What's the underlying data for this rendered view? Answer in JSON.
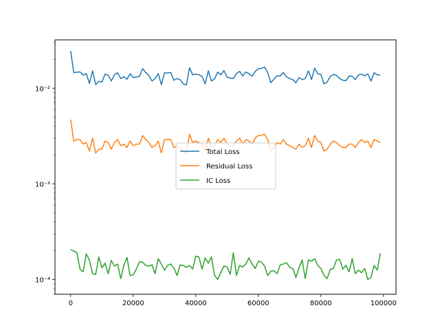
{
  "chart_data": {
    "type": "line",
    "title": "",
    "xlabel": "",
    "ylabel": "",
    "xlim": [
      -5000,
      104000
    ],
    "ylim": [
      7e-05,
      0.032
    ],
    "yscale": "log",
    "grid": false,
    "legend_placement": "center",
    "x_ticks": [
      0,
      20000,
      40000,
      60000,
      80000,
      100000
    ],
    "x_tick_labels": [
      "0",
      "20000",
      "40000",
      "60000",
      "80000",
      "100000"
    ],
    "y_ticks": [
      0.0001,
      0.001,
      0.01
    ],
    "y_tick_labels": [
      "10⁻⁴",
      "10⁻³",
      "10⁻²"
    ],
    "x": [
      0,
      1000,
      2000,
      3000,
      4000,
      5000,
      6000,
      7000,
      8000,
      9000,
      10000,
      11000,
      12000,
      13000,
      14000,
      15000,
      16000,
      17000,
      18000,
      19000,
      20000,
      21000,
      22000,
      23000,
      24000,
      25000,
      26000,
      27000,
      28000,
      29000,
      30000,
      31000,
      32000,
      33000,
      34000,
      35000,
      36000,
      37000,
      38000,
      39000,
      40000,
      41000,
      42000,
      43000,
      44000,
      45000,
      46000,
      47000,
      48000,
      49000,
      50000,
      51000,
      52000,
      53000,
      54000,
      55000,
      56000,
      57000,
      58000,
      59000,
      60000,
      61000,
      62000,
      63000,
      64000,
      65000,
      66000,
      67000,
      68000,
      69000,
      70000,
      71000,
      72000,
      73000,
      74000,
      75000,
      76000,
      77000,
      78000,
      79000,
      80000,
      81000,
      82000,
      83000,
      84000,
      85000,
      86000,
      87000,
      88000,
      89000,
      90000,
      91000,
      92000,
      93000,
      94000,
      95000,
      96000,
      97000,
      98000,
      99000
    ],
    "series": [
      {
        "name": "Total Loss",
        "color": "#1f77b4",
        "values": [
          0.0245,
          0.0145,
          0.0147,
          0.0148,
          0.0137,
          0.0142,
          0.0112,
          0.0152,
          0.0109,
          0.0118,
          0.0116,
          0.014,
          0.0137,
          0.0119,
          0.0138,
          0.0145,
          0.0126,
          0.0132,
          0.0124,
          0.0142,
          0.0129,
          0.0131,
          0.0133,
          0.016,
          0.0146,
          0.0136,
          0.0119,
          0.0126,
          0.0142,
          0.0109,
          0.0145,
          0.0144,
          0.0146,
          0.0121,
          0.0126,
          0.0123,
          0.0111,
          0.0108,
          0.0164,
          0.0138,
          0.014,
          0.0138,
          0.0133,
          0.0111,
          0.0152,
          0.0119,
          0.0125,
          0.0147,
          0.0138,
          0.0153,
          0.013,
          0.0128,
          0.0126,
          0.0142,
          0.015,
          0.0134,
          0.0148,
          0.0142,
          0.0133,
          0.015,
          0.016,
          0.0161,
          0.0166,
          0.0145,
          0.0114,
          0.0124,
          0.0135,
          0.0134,
          0.0146,
          0.0131,
          0.0126,
          0.0123,
          0.0114,
          0.0129,
          0.0123,
          0.0126,
          0.0152,
          0.0123,
          0.0162,
          0.0142,
          0.0139,
          0.0111,
          0.0116,
          0.0133,
          0.0139,
          0.0136,
          0.0126,
          0.0121,
          0.012,
          0.0134,
          0.0133,
          0.0123,
          0.0138,
          0.014,
          0.0135,
          0.0141,
          0.0119,
          0.0145,
          0.0138,
          0.0137
        ]
      },
      {
        "name": "Residual Loss",
        "color": "#ff7f0e",
        "values": [
          0.0047,
          0.0028,
          0.0029,
          0.0029,
          0.0026,
          0.0027,
          0.0022,
          0.003,
          0.0021,
          0.0023,
          0.0023,
          0.0028,
          0.0027,
          0.0023,
          0.0027,
          0.0029,
          0.0025,
          0.0026,
          0.0024,
          0.0028,
          0.0025,
          0.0026,
          0.0026,
          0.0032,
          0.0029,
          0.0027,
          0.0024,
          0.0025,
          0.0028,
          0.0021,
          0.0029,
          0.0029,
          0.0029,
          0.0024,
          0.0025,
          0.0024,
          0.0022,
          0.0021,
          0.0033,
          0.0027,
          0.0028,
          0.0027,
          0.0026,
          0.0022,
          0.003,
          0.0024,
          0.0025,
          0.0029,
          0.0027,
          0.003,
          0.0026,
          0.0025,
          0.0025,
          0.0028,
          0.003,
          0.0026,
          0.0029,
          0.0028,
          0.0026,
          0.003,
          0.0032,
          0.0032,
          0.0033,
          0.0029,
          0.0022,
          0.0024,
          0.0027,
          0.0026,
          0.0029,
          0.0026,
          0.0025,
          0.0024,
          0.0023,
          0.0026,
          0.0024,
          0.0025,
          0.003,
          0.0024,
          0.0032,
          0.0028,
          0.0027,
          0.0022,
          0.0023,
          0.0026,
          0.0028,
          0.0027,
          0.0025,
          0.0024,
          0.0024,
          0.0026,
          0.0026,
          0.0024,
          0.0027,
          0.0029,
          0.0027,
          0.0028,
          0.0024,
          0.0029,
          0.0028,
          0.0027
        ]
      },
      {
        "name": "IC Loss",
        "color": "#2ca02c",
        "values": [
          0.000205,
          0.000198,
          0.00019,
          0.000128,
          0.00012,
          0.000185,
          0.000158,
          0.000115,
          0.000113,
          0.000172,
          0.000132,
          0.000148,
          0.000115,
          0.000158,
          0.000138,
          0.000145,
          0.000102,
          0.00014,
          0.00017,
          0.00011,
          0.000112,
          0.000128,
          0.000153,
          0.000152,
          0.00014,
          0.000138,
          0.000142,
          0.000115,
          0.000165,
          0.000145,
          0.000125,
          0.00014,
          0.000145,
          0.000132,
          0.00011,
          0.000142,
          0.00014,
          0.000134,
          0.00014,
          0.000128,
          0.000175,
          0.000172,
          0.000128,
          0.000168,
          0.000148,
          0.000172,
          0.00011,
          0.0001,
          0.000118,
          0.000138,
          0.000135,
          0.000113,
          0.00019,
          0.00011,
          0.00014,
          0.000135,
          0.000145,
          0.000168,
          0.000145,
          0.00013,
          0.000155,
          0.000152,
          0.000138,
          0.00011,
          0.000122,
          0.000123,
          0.000115,
          0.000142,
          0.000145,
          0.00015,
          0.000134,
          0.00013,
          0.000105,
          0.000132,
          0.00016,
          0.000102,
          0.00016,
          0.000155,
          0.000165,
          0.00014,
          0.00013,
          0.00011,
          0.000102,
          0.000128,
          0.00013,
          0.00016,
          0.000162,
          0.000128,
          0.00014,
          0.00012,
          0.000165,
          0.000115,
          0.000125,
          0.000118,
          0.00013,
          0.0001,
          0.000105,
          0.00014,
          0.000125,
          0.000188
        ]
      }
    ]
  }
}
